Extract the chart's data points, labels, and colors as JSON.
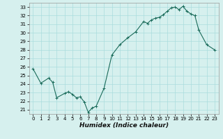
{
  "xlabel": "Humidex (Indice chaleur)",
  "ylabel": "",
  "background_color": "#d6f0ee",
  "line_color": "#1a6b5a",
  "marker_color": "#1a6b5a",
  "grid_color": "#aadddd",
  "xlim": [
    -0.5,
    23.5
  ],
  "ylim": [
    20.5,
    33.5
  ],
  "x_ticks": [
    0,
    1,
    2,
    3,
    4,
    5,
    6,
    7,
    8,
    9,
    10,
    11,
    12,
    13,
    14,
    15,
    16,
    17,
    18,
    19,
    20,
    21,
    22,
    23
  ],
  "y_ticks": [
    21,
    22,
    23,
    24,
    25,
    26,
    27,
    28,
    29,
    30,
    31,
    32,
    33
  ],
  "x_values": [
    0,
    1,
    2,
    2.5,
    3,
    4,
    4.5,
    5,
    5.5,
    6,
    6.5,
    7,
    7.5,
    8,
    9,
    10,
    11,
    12,
    13,
    14,
    14.5,
    15,
    15.5,
    16,
    16.5,
    17,
    17.5,
    18,
    18.5,
    19,
    19.5,
    20,
    20.5,
    21,
    22,
    23
  ],
  "y_values": [
    25.8,
    24.1,
    24.7,
    24.2,
    22.4,
    22.9,
    23.1,
    22.8,
    22.4,
    22.5,
    21.9,
    20.7,
    21.2,
    21.4,
    23.5,
    27.4,
    28.6,
    29.4,
    30.1,
    31.3,
    31.1,
    31.5,
    31.7,
    31.8,
    32.1,
    32.5,
    32.9,
    33.0,
    32.7,
    33.1,
    32.5,
    32.2,
    32.0,
    30.3,
    28.6,
    28.0
  ]
}
